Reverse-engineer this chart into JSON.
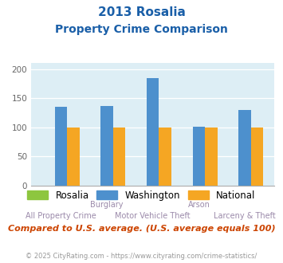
{
  "title_line1": "2013 Rosalia",
  "title_line2": "Property Crime Comparison",
  "categories": [
    "All Property Crime",
    "Burglary",
    "Motor Vehicle Theft",
    "Arson",
    "Larceny & Theft"
  ],
  "cat_labels_row1": [
    "",
    "Burglary",
    "",
    "Arson",
    ""
  ],
  "cat_labels_row2": [
    "All Property Crime",
    "",
    "Motor Vehicle Theft",
    "",
    "Larceny & Theft"
  ],
  "rosalia": [
    0,
    0,
    0,
    0,
    0
  ],
  "washington": [
    135,
    137,
    184,
    101,
    129
  ],
  "national": [
    100,
    100,
    100,
    100,
    100
  ],
  "bar_color_rosalia": "#8dc63f",
  "bar_color_washington": "#4d90cd",
  "bar_color_national": "#f5a623",
  "bg_color": "#ddeef5",
  "ylim": [
    0,
    210
  ],
  "yticks": [
    0,
    50,
    100,
    150,
    200
  ],
  "footnote": "Compared to U.S. average. (U.S. average equals 100)",
  "copyright": "© 2025 CityRating.com - https://www.cityrating.com/crime-statistics/",
  "legend_labels": [
    "Rosalia",
    "Washington",
    "National"
  ],
  "title_color": "#1a5fa8",
  "footnote_color": "#cc4400",
  "copyright_color": "#999999",
  "xlabel_color": "#9b8aaa"
}
